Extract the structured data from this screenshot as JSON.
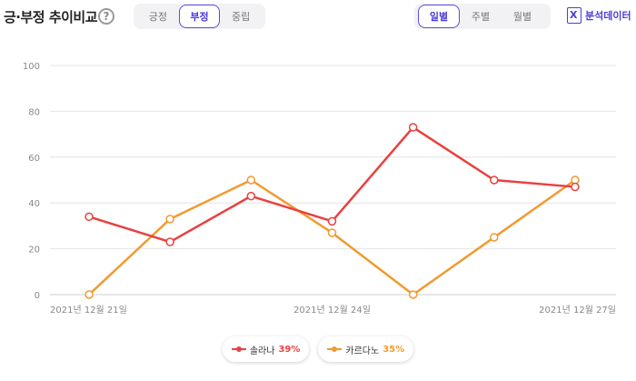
{
  "header": {
    "title": "긍·부정 추이비교",
    "help_icon": "?",
    "sentiment_tabs": [
      "긍정",
      "부정",
      "중립"
    ],
    "sentiment_active": 1,
    "period_tabs": [
      "일별",
      "주별",
      "월별"
    ],
    "period_active": 0,
    "export_label": "분석데이터",
    "export_icon": "excel-icon"
  },
  "colors": {
    "accent": "#4a3cd6",
    "series1": "#e8413f",
    "series2": "#f29a2e",
    "grid": "#e4e4e4"
  },
  "chart_data": {
    "type": "line",
    "x": [
      "2021-12-21",
      "2021-12-22",
      "2021-12-23",
      "2021-12-24",
      "2021-12-25",
      "2021-12-26",
      "2021-12-27"
    ],
    "x_tick_labels": [
      "2021년 12월 21일",
      "",
      "",
      "2021년 12월 24일",
      "",
      "",
      "2021년 12월 27일"
    ],
    "y_ticks": [
      0,
      20,
      40,
      60,
      80,
      100
    ],
    "ylim": [
      0,
      100
    ],
    "grid": true,
    "legend_position": "bottom-center",
    "series": [
      {
        "name": "솔라나",
        "pct": "39%",
        "color": "#e8413f",
        "values": [
          34,
          23,
          43,
          32,
          73,
          50,
          47
        ]
      },
      {
        "name": "카르다노",
        "pct": "35%",
        "color": "#f29a2e",
        "values": [
          0,
          33,
          50,
          27,
          0,
          25,
          50
        ]
      }
    ]
  }
}
